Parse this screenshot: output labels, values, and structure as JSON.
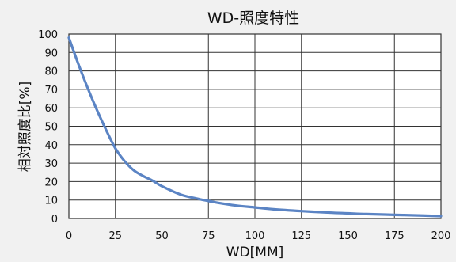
{
  "chart_data": {
    "type": "line",
    "title": "WD-照度特性",
    "xlabel": "WD[MM]",
    "ylabel": "相対照度比[%]",
    "xlim": [
      0,
      200
    ],
    "ylim": [
      0,
      100
    ],
    "x_ticks": [
      "0",
      "25",
      "50",
      "75",
      "100",
      "125",
      "150",
      "175",
      "200"
    ],
    "y_ticks": [
      "0",
      "10",
      "20",
      "30",
      "40",
      "50",
      "60",
      "70",
      "80",
      "90",
      "100"
    ],
    "grid": true,
    "series": [
      {
        "color": "#5b84c4",
        "x": [
          0,
          5,
          10,
          15,
          20,
          25,
          30,
          35,
          40,
          45,
          50,
          60,
          70,
          75,
          80,
          90,
          100,
          110,
          125,
          140,
          150,
          160,
          175,
          190,
          200
        ],
        "y": [
          98,
          84,
          71,
          59,
          48,
          38,
          31,
          26,
          23,
          20.5,
          17.5,
          13,
          10.5,
          9.5,
          8.5,
          7,
          6,
          5,
          4,
          3.2,
          2.8,
          2.4,
          2,
          1.6,
          1.3
        ]
      }
    ]
  }
}
